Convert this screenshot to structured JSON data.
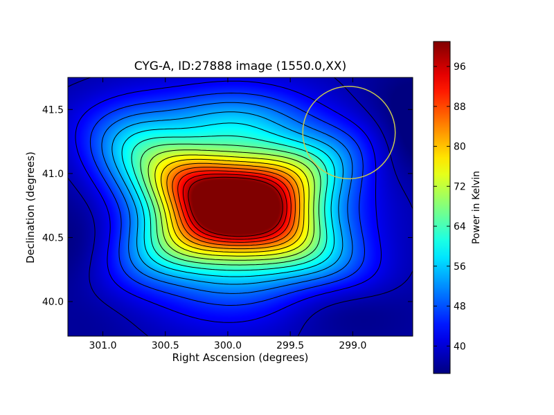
{
  "chart_data": {
    "type": "heatmap",
    "title": "CYG-A, ID:27888 image (1550.0,XX)",
    "xlabel": "Right Ascension (degrees)",
    "ylabel": "Declination (degrees)",
    "xlim": [
      301.28,
      298.52
    ],
    "ylim": [
      39.73,
      41.75
    ],
    "xticks": [
      301.0,
      300.5,
      300.0,
      299.5,
      299.0
    ],
    "xtick_labels": [
      "301.0",
      "300.5",
      "300.0",
      "299.5",
      "299.0"
    ],
    "yticks": [
      40.0,
      40.5,
      41.0,
      41.5
    ],
    "ytick_labels": [
      "40.0",
      "40.5",
      "41.0",
      "41.5"
    ],
    "colormap": "jet",
    "contours": true,
    "grid": false,
    "colorbar": {
      "label": "Power in Kelvin",
      "range": [
        34.5,
        101.0
      ],
      "ticks": [
        40,
        48,
        56,
        64,
        72,
        80,
        88,
        96
      ],
      "tick_labels": [
        "40",
        "48",
        "56",
        "64",
        "72",
        "80",
        "88",
        "96"
      ]
    },
    "peak_value": 100,
    "peak_ra": 299.95,
    "peak_dec": 40.78,
    "beam_circle": {
      "ra_center": 299.03,
      "dec_center": 41.32,
      "radius_deg": 0.37,
      "color": "#c8c850"
    }
  }
}
